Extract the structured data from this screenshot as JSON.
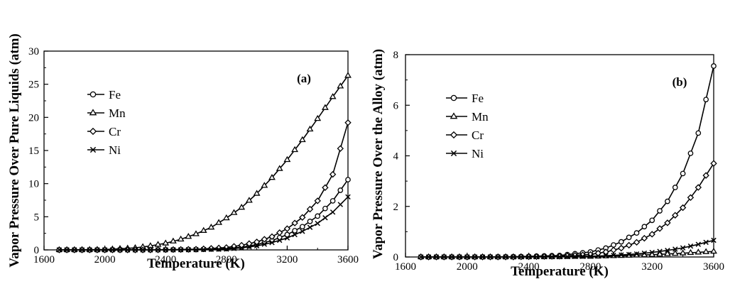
{
  "chart_data": [
    {
      "type": "line",
      "panel_label": "(a)",
      "xlabel": "Temperature (K)",
      "ylabel": "Vapor Pressure Over Pure Liquids (atm)",
      "xlim": [
        1600,
        3600
      ],
      "ylim": [
        0,
        30
      ],
      "xticks": [
        1600,
        2000,
        2400,
        2800,
        3200,
        3600
      ],
      "yticks": [
        0,
        5,
        10,
        15,
        20,
        25,
        30
      ],
      "legend_position": "upper-left",
      "series": [
        {
          "name": "Fe",
          "marker": "circle",
          "x": [
            1700,
            2000,
            2300,
            2600,
            2800,
            2900,
            3000,
            3100,
            3200,
            3300,
            3400,
            3500,
            3600
          ],
          "y": [
            0,
            0,
            0,
            0.05,
            0.2,
            0.4,
            0.8,
            1.4,
            2.3,
            3.5,
            5.1,
            7.4,
            10.6
          ]
        },
        {
          "name": "Mn",
          "marker": "triangle",
          "x": [
            1700,
            2000,
            2200,
            2300,
            2400,
            2500,
            2600,
            2700,
            2800,
            2900,
            3000,
            3100,
            3200,
            3300,
            3400,
            3500,
            3600
          ],
          "y": [
            0,
            0.05,
            0.3,
            0.6,
            1.0,
            1.6,
            2.4,
            3.4,
            4.8,
            6.4,
            8.5,
            10.9,
            13.6,
            16.6,
            19.8,
            23.1,
            26.3
          ]
        },
        {
          "name": "Cr",
          "marker": "diamond",
          "x": [
            1700,
            2000,
            2300,
            2600,
            2800,
            2900,
            3000,
            3100,
            3200,
            3300,
            3400,
            3500,
            3600
          ],
          "y": [
            0,
            0,
            0,
            0.1,
            0.35,
            0.7,
            1.2,
            2.0,
            3.2,
            4.9,
            7.4,
            11.4,
            19.2
          ]
        },
        {
          "name": "Ni",
          "marker": "x",
          "x": [
            1700,
            2000,
            2300,
            2600,
            2800,
            2900,
            3000,
            3100,
            3200,
            3300,
            3400,
            3500,
            3600
          ],
          "y": [
            0,
            0,
            0,
            0.03,
            0.12,
            0.3,
            0.6,
            1.1,
            1.8,
            2.8,
            4.0,
            5.7,
            8.0
          ]
        }
      ]
    },
    {
      "type": "line",
      "panel_label": "(b)",
      "xlabel": "Temperature (K)",
      "ylabel": "Vapor Pressure Over the Alloy (atm)",
      "xlim": [
        1600,
        3600
      ],
      "ylim": [
        0,
        8
      ],
      "xticks": [
        1600,
        2000,
        2400,
        2800,
        3200,
        3600
      ],
      "yticks": [
        0,
        2,
        4,
        6,
        8
      ],
      "legend_position": "upper-left",
      "series": [
        {
          "name": "Fe",
          "marker": "circle",
          "x": [
            1700,
            2000,
            2300,
            2600,
            2800,
            2900,
            3000,
            3100,
            3200,
            3300,
            3400,
            3500,
            3600
          ],
          "y": [
            0,
            0,
            0.01,
            0.06,
            0.2,
            0.35,
            0.6,
            0.95,
            1.45,
            2.2,
            3.3,
            4.9,
            7.55
          ]
        },
        {
          "name": "Mn",
          "marker": "triangle",
          "x": [
            1700,
            2000,
            2300,
            2600,
            2800,
            3000,
            3200,
            3400,
            3600
          ],
          "y": [
            0,
            0,
            0,
            0.01,
            0.02,
            0.05,
            0.09,
            0.15,
            0.22
          ]
        },
        {
          "name": "Cr",
          "marker": "diamond",
          "x": [
            1700,
            2000,
            2300,
            2600,
            2800,
            2900,
            3000,
            3100,
            3200,
            3300,
            3400,
            3500,
            3600
          ],
          "y": [
            0,
            0,
            0,
            0.03,
            0.1,
            0.2,
            0.35,
            0.58,
            0.9,
            1.35,
            1.95,
            2.75,
            3.7
          ]
        },
        {
          "name": "Ni",
          "marker": "x",
          "x": [
            1700,
            2000,
            2300,
            2600,
            2800,
            2900,
            3000,
            3100,
            3200,
            3300,
            3400,
            3500,
            3600
          ],
          "y": [
            0,
            0,
            0,
            0.01,
            0.03,
            0.05,
            0.08,
            0.12,
            0.18,
            0.26,
            0.36,
            0.5,
            0.66
          ]
        }
      ]
    }
  ]
}
